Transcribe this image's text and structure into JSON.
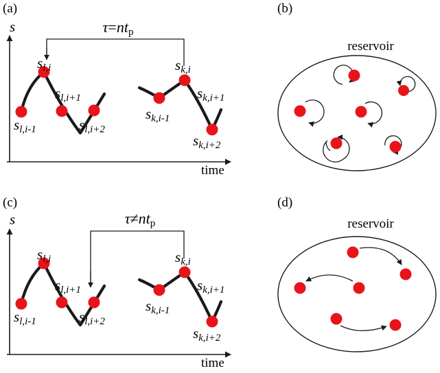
{
  "panels": {
    "a": {
      "tag": "(a)",
      "y_axis": "s",
      "x_axis": "time",
      "tau": {
        "symbol": "τ",
        "op": "=",
        "var": "nt",
        "sub": "p"
      },
      "labels": {
        "l_im1": {
          "base": "s",
          "sub": "l,i-1"
        },
        "l_i": {
          "base": "s",
          "sub": "l,i"
        },
        "l_ip1": {
          "base": "s",
          "sub": "l,i+1"
        },
        "l_ip2": {
          "base": "s",
          "sub": "l,i+2"
        },
        "k_im1": {
          "base": "s",
          "sub": "k,i-1"
        },
        "k_i": {
          "base": "s",
          "sub": "k,i"
        },
        "k_ip1": {
          "base": "s",
          "sub": "k,i+1"
        },
        "k_ip2": {
          "base": "s",
          "sub": "k,i+2"
        }
      }
    },
    "b": {
      "tag": "(b)",
      "title": "reservoir"
    },
    "c": {
      "tag": "(c)",
      "y_axis": "s",
      "x_axis": "time",
      "tau": {
        "symbol": "τ",
        "op": "≠",
        "var": "nt",
        "sub": "p"
      },
      "labels": {
        "l_im1": {
          "base": "s",
          "sub": "l,i-1"
        },
        "l_i": {
          "base": "s",
          "sub": "l,i"
        },
        "l_ip1": {
          "base": "s",
          "sub": "l,i+1"
        },
        "l_ip2": {
          "base": "s",
          "sub": "l,i+2"
        },
        "k_im1": {
          "base": "s",
          "sub": "k,i-1"
        },
        "k_i": {
          "base": "s",
          "sub": "k,i"
        },
        "k_ip1": {
          "base": "s",
          "sub": "k,i+1"
        },
        "k_ip2": {
          "base": "s",
          "sub": "k,i+2"
        }
      }
    },
    "d": {
      "tag": "(d)",
      "title": "reservoir"
    }
  },
  "colors": {
    "dot": "#e8141b",
    "ink": "#1a1a1a"
  }
}
